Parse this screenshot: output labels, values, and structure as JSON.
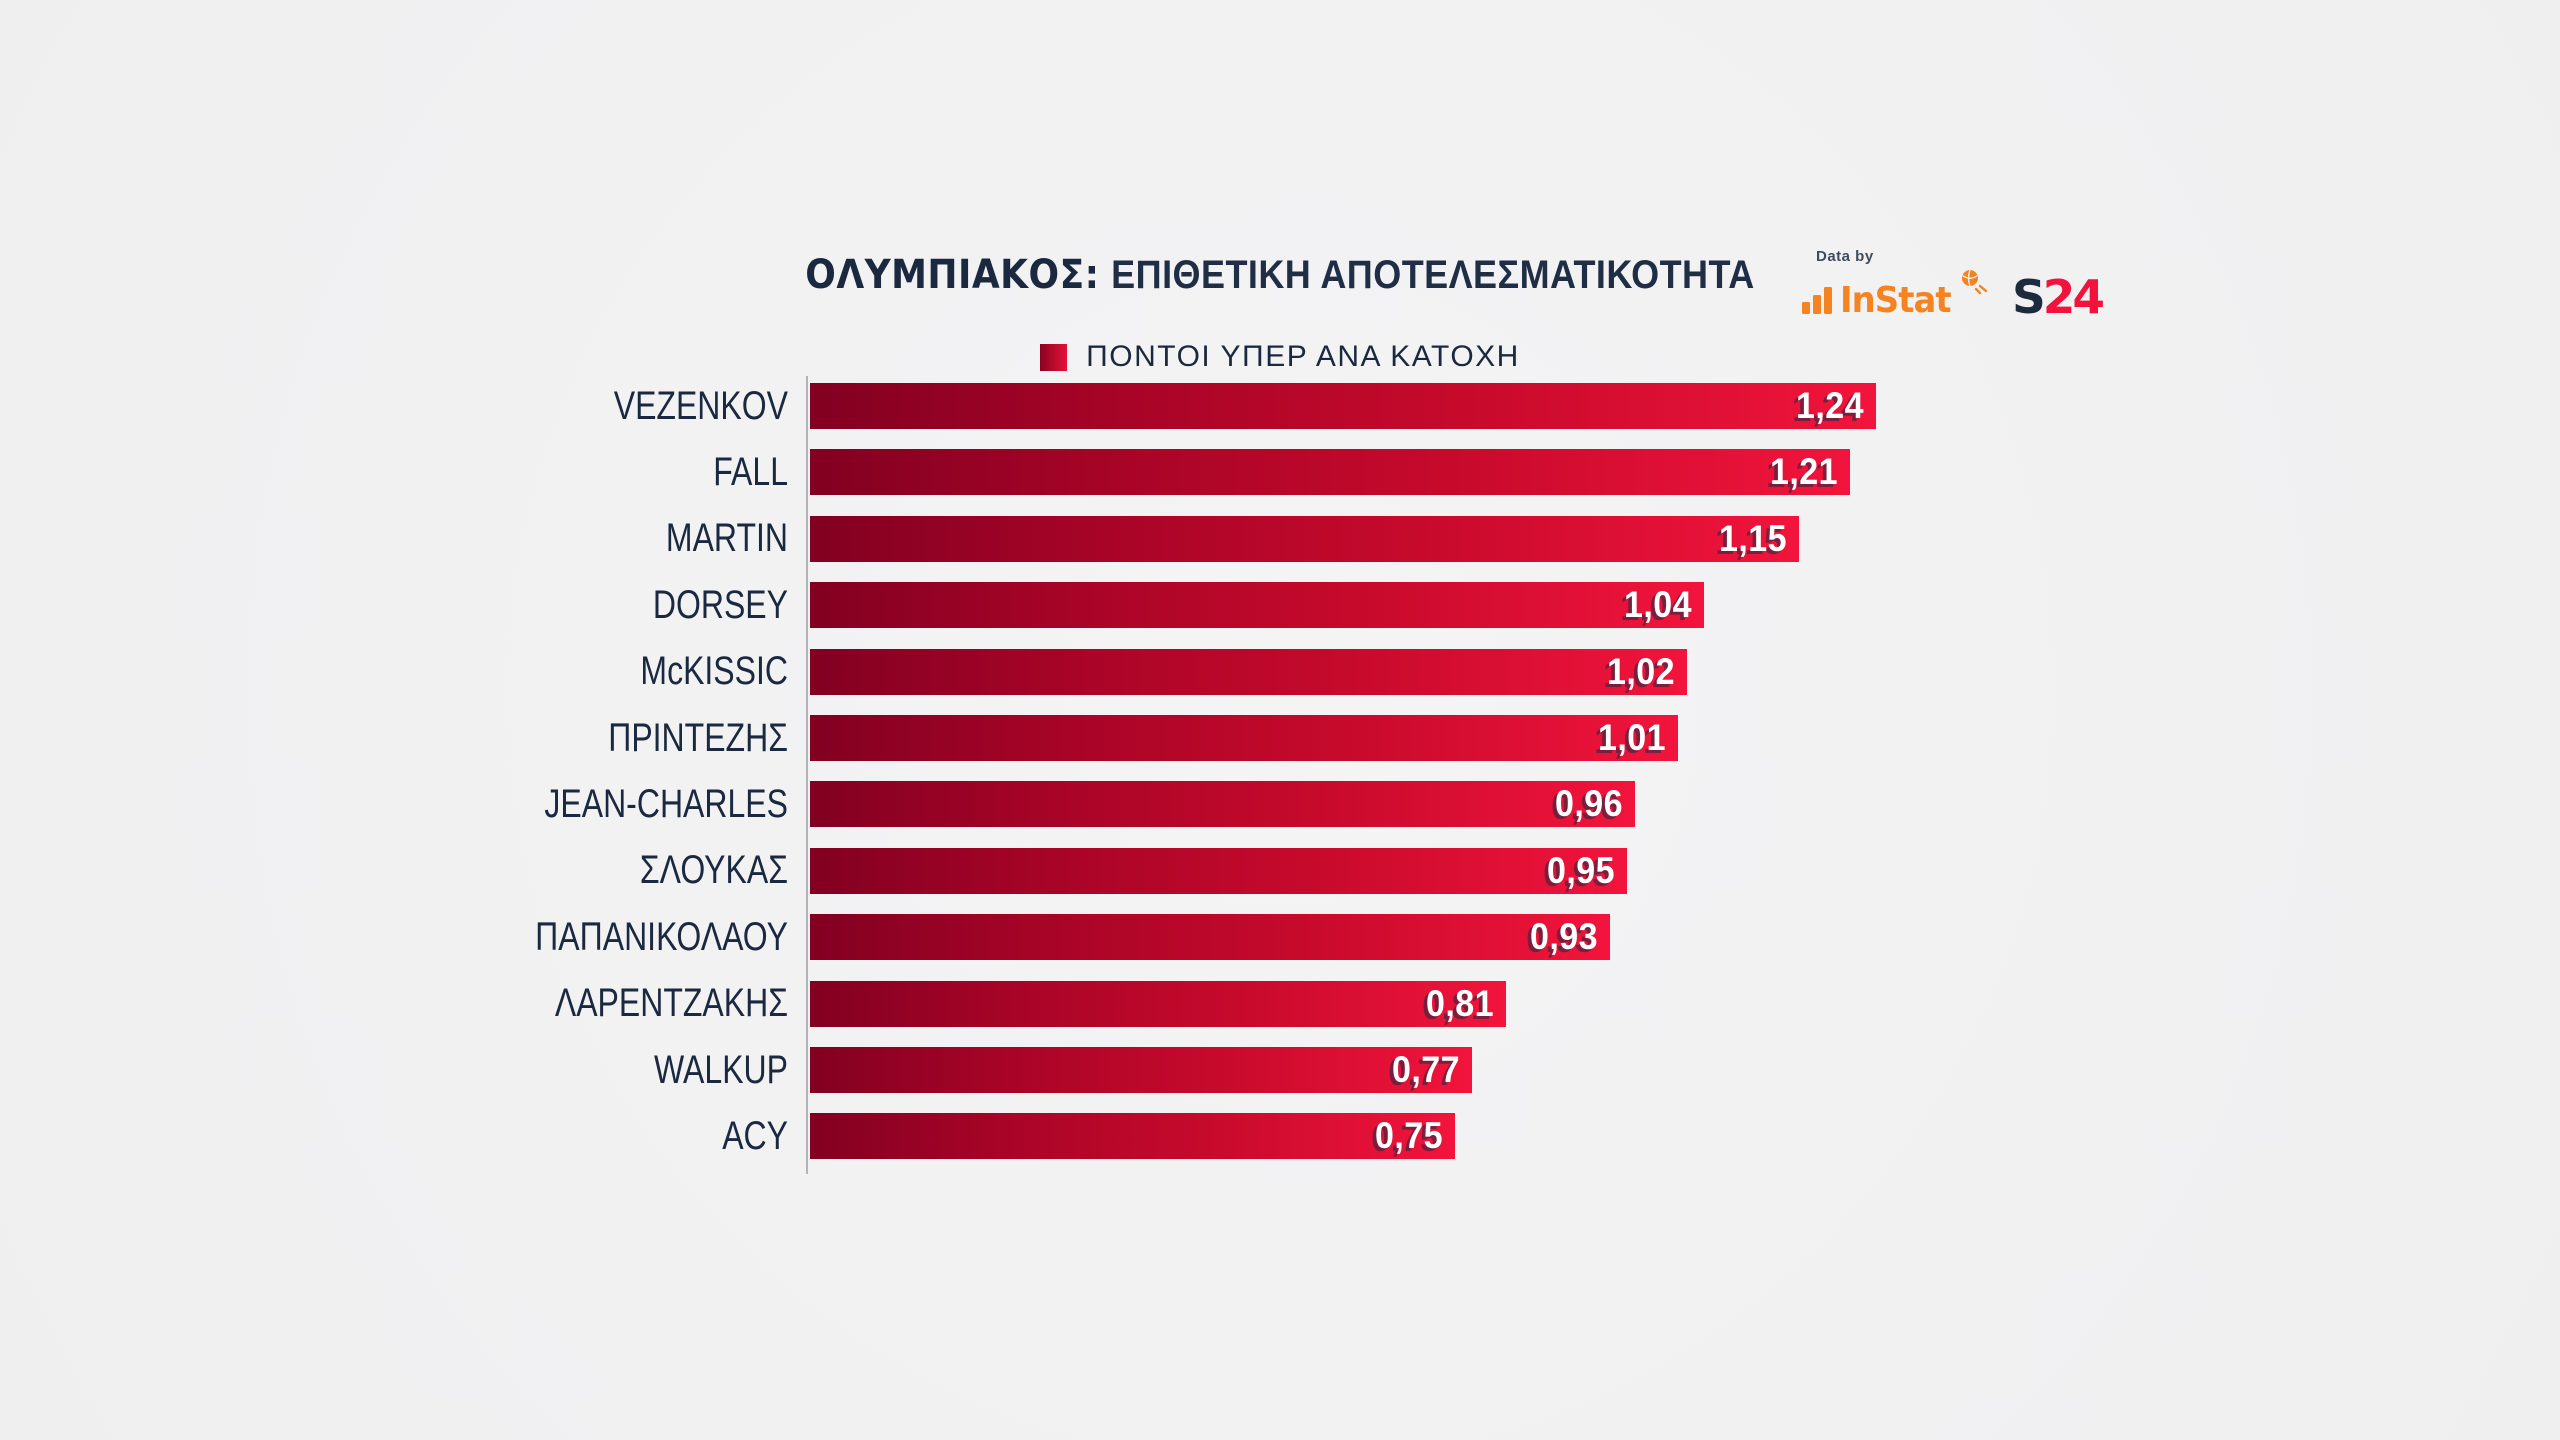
{
  "header": {
    "title_strong": "ΟΛΥΜΠΙΑΚΟΣ:",
    "title_rest": "ΕΠΙΘΕΤΙΚΗ ΑΠΟΤΕΛΕΣΜΑΤΙΚΟΤΗΤΑ",
    "data_by_label": "Data by",
    "instat_label": "InStat",
    "s24_s": "S",
    "s24_24": "24"
  },
  "legend": {
    "label": "ΠΟΝΤΟΙ ΥΠΕΡ ΑΝΑ ΚΑΤΟΧΗ"
  },
  "colors": {
    "background": "#f1f1f2",
    "text_navy": "#1b2940",
    "bar_gradient_dark": "#820021",
    "bar_gradient_bright": "#f2143c",
    "instat_orange": "#f5831f",
    "s24_red": "#f3123b",
    "value_text": "#ffffff"
  },
  "chart_data": {
    "type": "bar",
    "orientation": "horizontal",
    "title": "ΟΛΥΜΠΙΑΚΟΣ: ΕΠΙΘΕΤΙΚΗ ΑΠΟΤΕΛΕΣΜΑΤΙΚΟΤΗΤΑ",
    "legend_entries": [
      "ΠΟΝΤΟΙ ΥΠΕΡ ΑΝΑ ΚΑΤΟΧΗ"
    ],
    "legend_position": "top-center",
    "grid": false,
    "xlabel": "",
    "ylabel": "",
    "xlim": [
      0,
      1.28
    ],
    "categories": [
      "VEZENKOV",
      "FALL",
      "MARTIN",
      "DORSEY",
      "McKISSIC",
      "ΠΡΙΝΤΕΖΗΣ",
      "JEAN-CHARLES",
      "ΣΛΟΥΚΑΣ",
      "ΠΑΠΑΝΙΚΟΛΑΟΥ",
      "ΛΑΡΕΝΤΖΑΚΗΣ",
      "WALKUP",
      "ACY"
    ],
    "values": [
      1.24,
      1.21,
      1.15,
      1.04,
      1.02,
      1.01,
      0.96,
      0.95,
      0.93,
      0.81,
      0.77,
      0.75
    ],
    "value_labels": [
      "1,24",
      "1,21",
      "1,15",
      "1,04",
      "1,02",
      "1,01",
      "0,96",
      "0,95",
      "0,93",
      "0,81",
      "0,77",
      "0,75"
    ]
  }
}
